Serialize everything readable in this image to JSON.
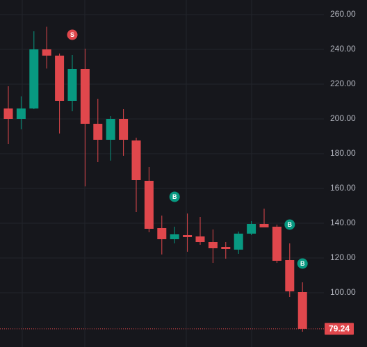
{
  "chart_data": {
    "type": "candlestick",
    "categories": [
      null,
      null,
      null,
      null,
      null,
      null,
      null,
      null,
      null,
      null,
      null,
      null,
      null,
      null,
      null,
      null,
      null,
      null,
      null,
      null,
      null,
      null,
      null,
      null
    ],
    "open": [
      206,
      200,
      206,
      240,
      236.4,
      210.4,
      228.8,
      197.2,
      188,
      200,
      187.6,
      164.4,
      137.2,
      130.8,
      133.2,
      132.4,
      129.2,
      126.4,
      124.8,
      134,
      139.6,
      138,
      118.8,
      100.4
    ],
    "high": [
      218.8,
      213,
      250.4,
      253,
      237.6,
      236.8,
      240.4,
      211.6,
      201.6,
      205.6,
      189.2,
      172.4,
      144.4,
      138,
      145.6,
      143.6,
      136.4,
      129.2,
      135.2,
      141.2,
      148.4,
      139.2,
      128.4,
      106
    ],
    "low": [
      185.6,
      194,
      205.6,
      229,
      191.6,
      204.4,
      161.2,
      175.2,
      176,
      178.8,
      146.4,
      134.8,
      122,
      128.4,
      123.6,
      127.6,
      117.2,
      119.6,
      122.4,
      133.2,
      137.6,
      117.2,
      97.6,
      77.6
    ],
    "close": [
      200,
      206,
      240,
      236.4,
      210.4,
      228.8,
      197.2,
      188,
      200,
      188,
      164.8,
      136.8,
      130.8,
      133.6,
      132,
      129.2,
      125.6,
      125.2,
      134,
      139.6,
      137.6,
      118.4,
      100.8,
      79.24
    ],
    "up_color": "#089981",
    "down_color": "#e0474c",
    "markers": [
      {
        "label": "S",
        "index": 5,
        "value": 248.4,
        "color": "#e0474c"
      },
      {
        "label": "B",
        "index": 13,
        "value": 155.2,
        "color": "#089981"
      },
      {
        "label": "B",
        "index": 22,
        "value": 139.2,
        "color": "#089981"
      },
      {
        "label": "B",
        "index": 23,
        "value": 116.8,
        "color": "#089981"
      }
    ],
    "last_price": 79.24,
    "ylim": [
      68.8,
      268.4
    ],
    "yticks": [
      {
        "value": 100,
        "label": "100.00"
      },
      {
        "value": 120,
        "label": "120.00"
      },
      {
        "value": 140,
        "label": "140.00"
      },
      {
        "value": 160,
        "label": "160.00"
      },
      {
        "value": 180,
        "label": "180.00"
      },
      {
        "value": 200,
        "label": "200.00"
      },
      {
        "value": 220,
        "label": "220.00"
      },
      {
        "value": 240,
        "label": "240.00"
      },
      {
        "value": 260,
        "label": "260.00"
      }
    ],
    "grid": true
  }
}
